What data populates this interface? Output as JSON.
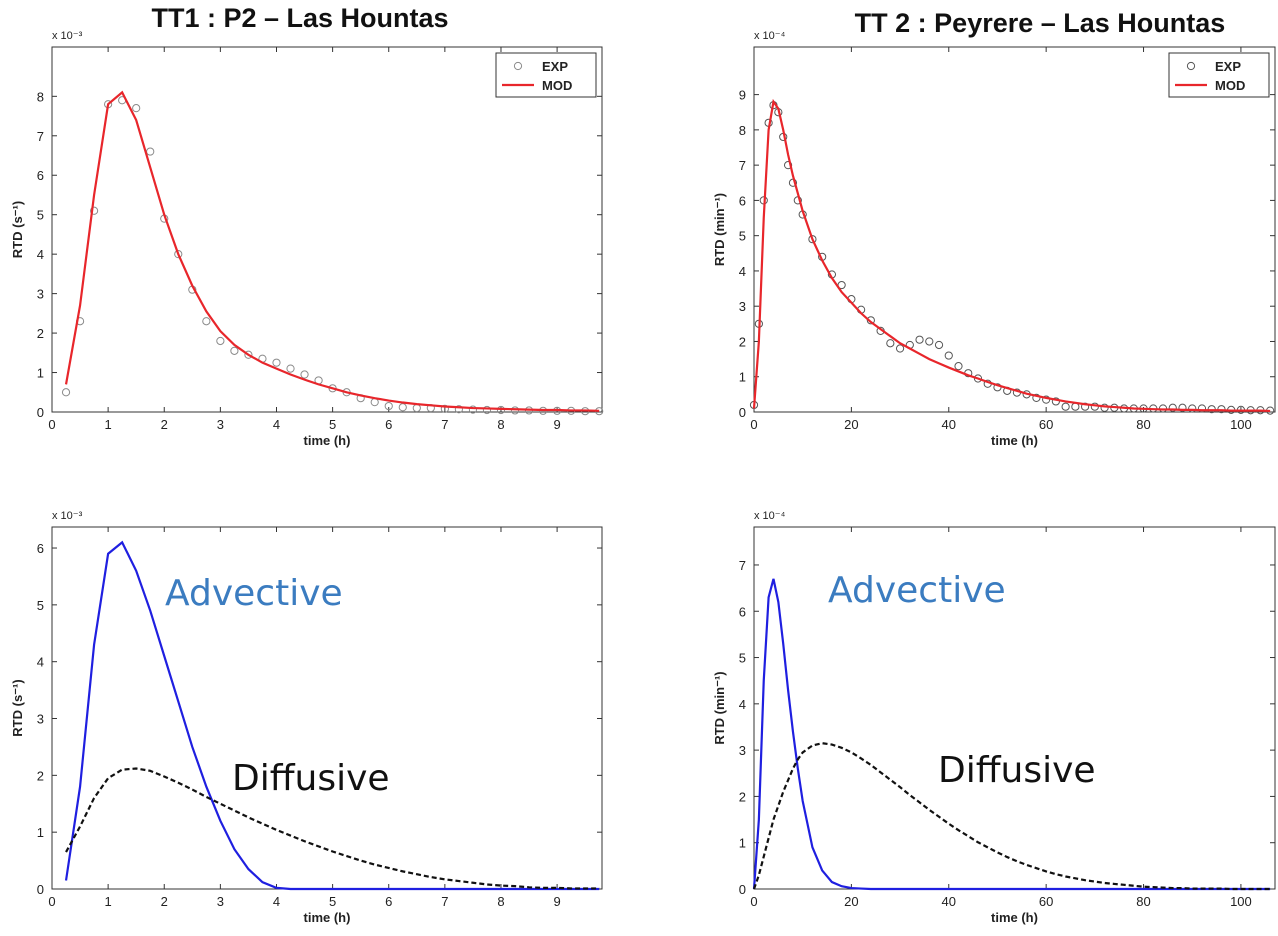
{
  "chart_data": [
    {
      "type": "line",
      "title": "TT1  : P2 – Las Hountas",
      "xlabel": "time (h)",
      "ylabel": "RTD (s⁻¹)",
      "exponent": "x 10⁻³",
      "xlim": [
        0,
        9.8
      ],
      "ylim": [
        0,
        9.25
      ],
      "xticks": [
        0,
        1,
        2,
        3,
        4,
        5,
        6,
        7,
        8,
        9
      ],
      "yticks": [
        0,
        1,
        2,
        3,
        4,
        5,
        6,
        7,
        8
      ],
      "legend": "upper right",
      "x": [
        0.25,
        0.5,
        0.75,
        1.0,
        1.25,
        1.5,
        1.75,
        2.0,
        2.25,
        2.5,
        2.75,
        3.0,
        3.25,
        3.5,
        3.75,
        4.0,
        4.25,
        4.5,
        4.75,
        5.0,
        5.25,
        5.5,
        5.75,
        6.0,
        6.25,
        6.5,
        6.75,
        7.0,
        7.25,
        7.5,
        7.75,
        8.0,
        8.25,
        8.5,
        8.75,
        9.0,
        9.25,
        9.5,
        9.75
      ],
      "series": [
        {
          "name": "EXP",
          "color": "#8a8a8a",
          "style": "markers",
          "values": [
            0.5,
            2.3,
            5.1,
            7.8,
            7.9,
            7.7,
            6.6,
            4.9,
            4.0,
            3.1,
            2.3,
            1.8,
            1.55,
            1.45,
            1.35,
            1.25,
            1.1,
            0.95,
            0.8,
            0.6,
            0.5,
            0.35,
            0.25,
            0.15,
            0.12,
            0.1,
            0.1,
            0.08,
            0.07,
            0.06,
            0.05,
            0.05,
            0.04,
            0.04,
            0.03,
            0.03,
            0.03,
            0.02,
            0.02
          ]
        },
        {
          "name": "MOD",
          "color": "#e8262b",
          "style": "solid",
          "values": [
            0.7,
            2.7,
            5.5,
            7.8,
            8.1,
            7.4,
            6.2,
            5.0,
            4.0,
            3.2,
            2.55,
            2.05,
            1.7,
            1.45,
            1.25,
            1.1,
            0.95,
            0.82,
            0.7,
            0.6,
            0.5,
            0.42,
            0.35,
            0.29,
            0.24,
            0.2,
            0.17,
            0.14,
            0.12,
            0.1,
            0.09,
            0.08,
            0.07,
            0.06,
            0.05,
            0.05,
            0.04,
            0.04,
            0.03
          ]
        }
      ]
    },
    {
      "type": "line",
      "title": "TT 2 : Peyrere  – Las Hountas",
      "xlabel": "time (h)",
      "ylabel": "RTD (min⁻¹)",
      "exponent": "x 10⁻⁴",
      "xlim": [
        0,
        107
      ],
      "ylim": [
        0,
        10.35
      ],
      "xticks": [
        0,
        20,
        40,
        60,
        80,
        100
      ],
      "yticks": [
        0,
        1,
        2,
        3,
        4,
        5,
        6,
        7,
        8,
        9
      ],
      "legend": "upper right",
      "x": [
        0,
        1,
        2,
        3,
        4,
        5,
        6,
        7,
        8,
        9,
        10,
        12,
        14,
        16,
        18,
        20,
        22,
        24,
        26,
        28,
        30,
        32,
        34,
        36,
        38,
        40,
        42,
        44,
        46,
        48,
        50,
        52,
        54,
        56,
        58,
        60,
        62,
        64,
        66,
        68,
        70,
        72,
        74,
        76,
        78,
        80,
        82,
        84,
        86,
        88,
        90,
        92,
        94,
        96,
        98,
        100,
        102,
        104,
        106
      ],
      "series": [
        {
          "name": "EXP",
          "color": "#555555",
          "style": "markers",
          "values": [
            0.2,
            2.5,
            6.0,
            8.2,
            8.7,
            8.5,
            7.8,
            7.0,
            6.5,
            6.0,
            5.6,
            4.9,
            4.4,
            3.9,
            3.6,
            3.2,
            2.9,
            2.6,
            2.3,
            1.95,
            1.8,
            1.9,
            2.05,
            2.0,
            1.9,
            1.6,
            1.3,
            1.1,
            0.95,
            0.8,
            0.7,
            0.6,
            0.55,
            0.5,
            0.4,
            0.35,
            0.3,
            0.15,
            0.15,
            0.15,
            0.15,
            0.12,
            0.12,
            0.1,
            0.1,
            0.1,
            0.1,
            0.1,
            0.12,
            0.12,
            0.1,
            0.1,
            0.08,
            0.08,
            0.06,
            0.06,
            0.05,
            0.05,
            0.04
          ]
        },
        {
          "name": "MOD",
          "color": "#e8262b",
          "style": "solid",
          "values": [
            0.1,
            2,
            5.5,
            8,
            8.8,
            8.6,
            8.0,
            7.3,
            6.7,
            6.2,
            5.7,
            4.9,
            4.3,
            3.8,
            3.4,
            3.1,
            2.8,
            2.55,
            2.35,
            2.15,
            1.95,
            1.8,
            1.65,
            1.5,
            1.38,
            1.26,
            1.15,
            1.04,
            0.95,
            0.85,
            0.76,
            0.68,
            0.6,
            0.52,
            0.46,
            0.4,
            0.35,
            0.3,
            0.26,
            0.22,
            0.19,
            0.16,
            0.14,
            0.12,
            0.1,
            0.09,
            0.08,
            0.07,
            0.07,
            0.06,
            0.06,
            0.05,
            0.05,
            0.05,
            0.04,
            0.04,
            0.04,
            0.04,
            0.03
          ]
        }
      ]
    },
    {
      "type": "line",
      "xlabel": "time (h)",
      "ylabel": "RTD (s⁻¹)",
      "exponent": "x 10⁻³",
      "xlim": [
        0,
        9.8
      ],
      "ylim": [
        0,
        6.37
      ],
      "xticks": [
        0,
        1,
        2,
        3,
        4,
        5,
        6,
        7,
        8,
        9
      ],
      "yticks": [
        0,
        1,
        2,
        3,
        4,
        5,
        6
      ],
      "x": [
        0.25,
        0.5,
        0.75,
        1.0,
        1.25,
        1.5,
        1.75,
        2.0,
        2.25,
        2.5,
        2.75,
        3.0,
        3.25,
        3.5,
        3.75,
        4.0,
        4.25,
        4.5,
        4.75,
        5.0,
        5.25,
        5.5,
        5.75,
        6.0,
        6.25,
        6.5,
        6.75,
        7.0,
        7.25,
        7.5,
        7.75,
        8.0,
        8.25,
        8.5,
        8.75,
        9.0,
        9.25,
        9.5,
        9.75
      ],
      "series": [
        {
          "name": "Advective",
          "color": "#1f1fe0",
          "style": "solid",
          "values": [
            0.15,
            1.8,
            4.3,
            5.9,
            6.1,
            5.6,
            4.9,
            4.1,
            3.3,
            2.5,
            1.8,
            1.2,
            0.7,
            0.35,
            0.12,
            0.02,
            0,
            0,
            0,
            0,
            0,
            0,
            0,
            0,
            0,
            0,
            0,
            0,
            0,
            0,
            0,
            0,
            0,
            0,
            0,
            0,
            0,
            0,
            0
          ]
        },
        {
          "name": "Diffusive",
          "color": "#111111",
          "style": "dashed",
          "values": [
            0.65,
            1.1,
            1.6,
            1.95,
            2.1,
            2.12,
            2.08,
            1.98,
            1.87,
            1.75,
            1.62,
            1.5,
            1.38,
            1.26,
            1.15,
            1.04,
            0.94,
            0.84,
            0.75,
            0.66,
            0.58,
            0.5,
            0.43,
            0.37,
            0.31,
            0.26,
            0.21,
            0.17,
            0.14,
            0.11,
            0.08,
            0.06,
            0.05,
            0.03,
            0.02,
            0.02,
            0.01,
            0.01,
            0.01
          ]
        }
      ]
    },
    {
      "type": "line",
      "xlabel": "time (h)",
      "ylabel": "RTD (min⁻¹)",
      "exponent": "x 10⁻⁴",
      "xlim": [
        0,
        107
      ],
      "ylim": [
        0,
        7.82
      ],
      "xticks": [
        0,
        20,
        40,
        60,
        80,
        100
      ],
      "yticks": [
        0,
        1,
        2,
        3,
        4,
        5,
        6,
        7
      ],
      "x": [
        0,
        1,
        2,
        3,
        4,
        5,
        6,
        7,
        8,
        9,
        10,
        12,
        14,
        16,
        18,
        20,
        22,
        24,
        26,
        28,
        30,
        32,
        34,
        36,
        38,
        40,
        42,
        44,
        46,
        48,
        50,
        52,
        54,
        56,
        58,
        60,
        62,
        64,
        66,
        68,
        70,
        72,
        74,
        76,
        78,
        80,
        82,
        84,
        86,
        88,
        90,
        92,
        94,
        96,
        98,
        100,
        102,
        104,
        106
      ],
      "series": [
        {
          "name": "Advective",
          "color": "#1f1fe0",
          "style": "solid",
          "values": [
            0,
            1.5,
            4.5,
            6.3,
            6.7,
            6.2,
            5.3,
            4.3,
            3.4,
            2.6,
            1.9,
            0.9,
            0.4,
            0.15,
            0.06,
            0.02,
            0.01,
            0,
            0,
            0,
            0,
            0,
            0,
            0,
            0,
            0,
            0,
            0,
            0,
            0,
            0,
            0,
            0,
            0,
            0,
            0,
            0,
            0,
            0,
            0,
            0,
            0,
            0,
            0,
            0,
            0,
            0,
            0,
            0,
            0,
            0,
            0,
            0,
            0,
            0,
            0,
            0,
            0,
            0
          ]
        },
        {
          "name": "Diffusive",
          "color": "#111111",
          "style": "dashed",
          "values": [
            0,
            0.3,
            0.7,
            1.1,
            1.5,
            1.8,
            2.1,
            2.35,
            2.6,
            2.8,
            2.95,
            3.1,
            3.15,
            3.12,
            3.05,
            2.95,
            2.82,
            2.68,
            2.52,
            2.36,
            2.2,
            2.03,
            1.87,
            1.71,
            1.56,
            1.41,
            1.27,
            1.14,
            1.01,
            0.9,
            0.79,
            0.69,
            0.6,
            0.52,
            0.45,
            0.38,
            0.32,
            0.27,
            0.23,
            0.19,
            0.16,
            0.13,
            0.11,
            0.09,
            0.07,
            0.05,
            0.04,
            0.03,
            0.02,
            0.02,
            0.01,
            0.01,
            0.01,
            0.01,
            0,
            0,
            0,
            0,
            0
          ]
        }
      ]
    }
  ]
}
